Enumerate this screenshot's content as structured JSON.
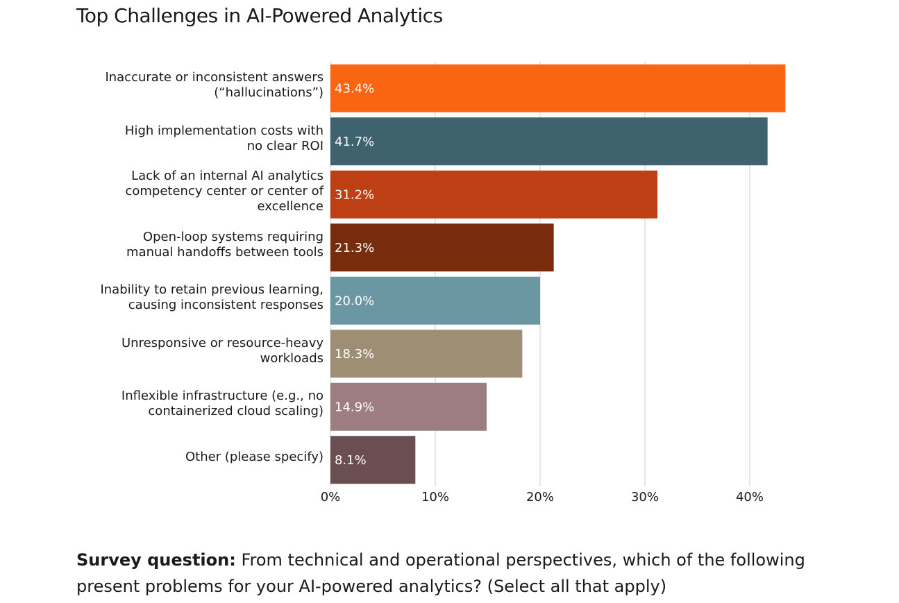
{
  "chart_data": {
    "type": "bar",
    "orientation": "horizontal",
    "title": "Top Challenges in AI-Powered Analytics",
    "categories": [
      "Inaccurate or inconsistent answers\n(“hallucinations”)",
      "High implementation costs with\nno clear ROI",
      "Lack of an internal AI analytics\ncompetency center or center of\nexcellence",
      "Open-loop systems requiring\nmanual handoffs between tools",
      "Inability to retain previous learning,\ncausing inconsistent responses",
      "Unresponsive or resource-heavy\nworkloads",
      "Inflexible infrastructure (e.g., no\ncontainerized cloud scaling)",
      "Other (please specify)"
    ],
    "values": [
      43.4,
      41.7,
      31.2,
      21.3,
      20.0,
      18.3,
      14.9,
      8.1
    ],
    "value_labels": [
      "43.4%",
      "41.7%",
      "31.2%",
      "21.3%",
      "20.0%",
      "18.3%",
      "14.9%",
      "8.1%"
    ],
    "colors": [
      "#fa6513",
      "#3e626e",
      "#bf3f15",
      "#782c0e",
      "#6b97a3",
      "#9e8f74",
      "#9e7d80",
      "#6b4e52"
    ],
    "xlim": [
      0,
      45
    ],
    "xticks": [
      {
        "value": 0,
        "label": "0%"
      },
      {
        "value": 10,
        "label": "10%"
      },
      {
        "value": 20,
        "label": "20%"
      },
      {
        "value": 30,
        "label": "30%"
      },
      {
        "value": 40,
        "label": "40%"
      }
    ],
    "grid": true,
    "note": {
      "label": "Survey question:",
      "text": "From technical and operational perspectives, which of the following present problems for your AI-powered analytics? (Select all that apply)"
    }
  }
}
